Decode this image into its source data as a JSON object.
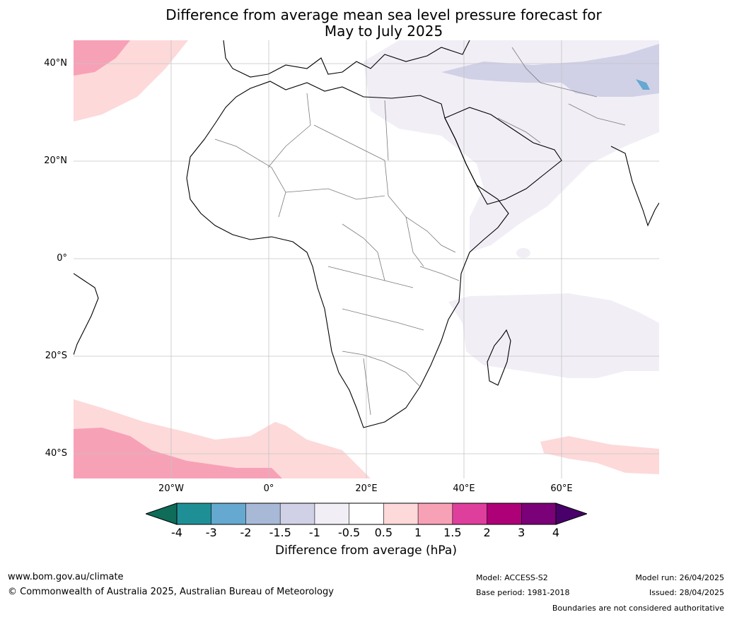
{
  "title": {
    "line1": "Difference from average mean sea level pressure forecast for",
    "line2": "May to July 2025"
  },
  "map": {
    "latitude_labels": [
      "40°N",
      "20°N",
      "0°",
      "20°S",
      "40°S"
    ],
    "longitude_labels": [
      "20°W",
      "0°",
      "20°E",
      "40°E",
      "60°E"
    ]
  },
  "colorbar": {
    "ticks": [
      "-4",
      "-3",
      "-2",
      "-1.5",
      "-1",
      "-0.5",
      "0.5",
      "1",
      "1.5",
      "2",
      "3",
      "4"
    ],
    "colors": [
      "#0e6c59",
      "#1f8f96",
      "#65a8d0",
      "#a7b9d6",
      "#d0d1e6",
      "#f1eef6",
      "#ffffff",
      "#fdd9da",
      "#f7a1b7",
      "#de3f9c",
      "#ae0178",
      "#7a0177",
      "#49006a"
    ],
    "label": "Difference from average (hPa)"
  },
  "footer": {
    "website": "www.bom.gov.au/climate",
    "copyright": "© Commonwealth of Australia 2025, Australian Bureau of Meteorology",
    "model": "Model: ACCESS-S2",
    "base_period": "Base period: 1981-2018",
    "model_run": "Model run: 26/04/2025",
    "issued": "Issued: 28/04/2025",
    "disclaimer": "Boundaries are not considered authoritative"
  }
}
